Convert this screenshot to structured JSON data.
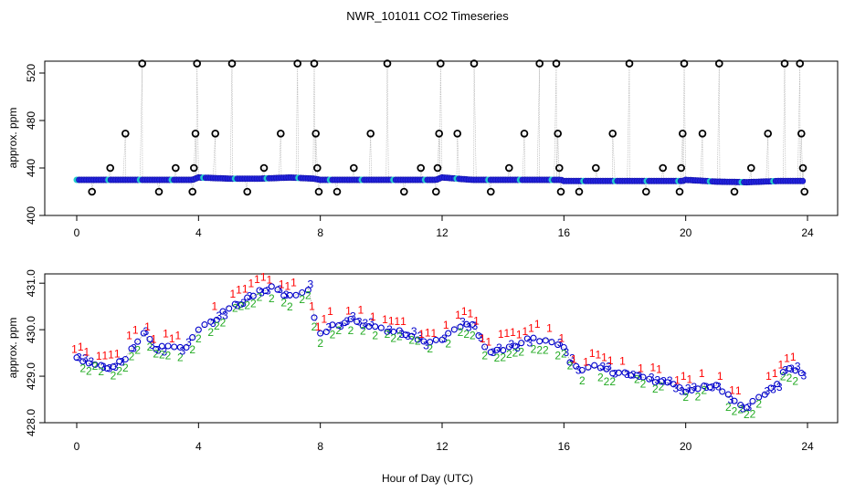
{
  "title": "NWR_101011  CO2 Timeseries",
  "xlabel": "Hour of Day (UTC)",
  "chart_data": [
    {
      "type": "scatter",
      "panel": "top",
      "ylabel": "approx. ppm",
      "xlim": [
        0,
        24
      ],
      "ylim": [
        400,
        530
      ],
      "xticks": [
        0,
        4,
        8,
        12,
        16,
        20,
        24
      ],
      "yticks": [
        400,
        440,
        480,
        520
      ],
      "baseline": [
        [
          0,
          430
        ],
        [
          1,
          430
        ],
        [
          2,
          430
        ],
        [
          3,
          430
        ],
        [
          3.8,
          430
        ],
        [
          4,
          432
        ],
        [
          5,
          431
        ],
        [
          6,
          431
        ],
        [
          7,
          432
        ],
        [
          7.8,
          431
        ],
        [
          8,
          430
        ],
        [
          10,
          430
        ],
        [
          11.8,
          430
        ],
        [
          12,
          432
        ],
        [
          13,
          430
        ],
        [
          15,
          430
        ],
        [
          15.9,
          430
        ],
        [
          16,
          429
        ],
        [
          18,
          429
        ],
        [
          19.9,
          429
        ],
        [
          20,
          430
        ],
        [
          21,
          428.5
        ],
        [
          22,
          428
        ],
        [
          23,
          429
        ],
        [
          23.8,
          429
        ]
      ],
      "outliers": [
        {
          "x": 0.5,
          "y": 420
        },
        {
          "x": 1.1,
          "y": 440
        },
        {
          "x": 1.6,
          "y": 469
        },
        {
          "x": 2.15,
          "y": 528
        },
        {
          "x": 2.7,
          "y": 420
        },
        {
          "x": 3.25,
          "y": 440
        },
        {
          "x": 3.8,
          "y": 420
        },
        {
          "x": 3.85,
          "y": 440
        },
        {
          "x": 3.9,
          "y": 469
        },
        {
          "x": 3.95,
          "y": 528
        },
        {
          "x": 4.55,
          "y": 469
        },
        {
          "x": 5.1,
          "y": 528
        },
        {
          "x": 5.6,
          "y": 420
        },
        {
          "x": 6.15,
          "y": 440
        },
        {
          "x": 6.7,
          "y": 469
        },
        {
          "x": 7.25,
          "y": 528
        },
        {
          "x": 7.8,
          "y": 528
        },
        {
          "x": 7.85,
          "y": 469
        },
        {
          "x": 7.9,
          "y": 440
        },
        {
          "x": 7.95,
          "y": 420
        },
        {
          "x": 8.55,
          "y": 420
        },
        {
          "x": 9.1,
          "y": 440
        },
        {
          "x": 9.65,
          "y": 469
        },
        {
          "x": 10.2,
          "y": 528
        },
        {
          "x": 10.75,
          "y": 420
        },
        {
          "x": 11.3,
          "y": 440
        },
        {
          "x": 11.8,
          "y": 420
        },
        {
          "x": 11.85,
          "y": 440
        },
        {
          "x": 11.9,
          "y": 469
        },
        {
          "x": 11.95,
          "y": 528
        },
        {
          "x": 12.5,
          "y": 469
        },
        {
          "x": 13.05,
          "y": 528
        },
        {
          "x": 13.6,
          "y": 420
        },
        {
          "x": 14.2,
          "y": 440
        },
        {
          "x": 14.7,
          "y": 469
        },
        {
          "x": 15.2,
          "y": 528
        },
        {
          "x": 15.75,
          "y": 528
        },
        {
          "x": 15.8,
          "y": 469
        },
        {
          "x": 15.85,
          "y": 440
        },
        {
          "x": 15.9,
          "y": 420
        },
        {
          "x": 16.5,
          "y": 420
        },
        {
          "x": 17.05,
          "y": 440
        },
        {
          "x": 17.6,
          "y": 469
        },
        {
          "x": 18.15,
          "y": 528
        },
        {
          "x": 18.7,
          "y": 420
        },
        {
          "x": 19.25,
          "y": 440
        },
        {
          "x": 19.8,
          "y": 420
        },
        {
          "x": 19.85,
          "y": 440
        },
        {
          "x": 19.9,
          "y": 469
        },
        {
          "x": 19.95,
          "y": 528
        },
        {
          "x": 20.55,
          "y": 469
        },
        {
          "x": 21.1,
          "y": 528
        },
        {
          "x": 21.6,
          "y": 420
        },
        {
          "x": 22.15,
          "y": 440
        },
        {
          "x": 22.7,
          "y": 469
        },
        {
          "x": 23.25,
          "y": 528
        },
        {
          "x": 23.75,
          "y": 528
        },
        {
          "x": 23.8,
          "y": 469
        },
        {
          "x": 23.85,
          "y": 440
        },
        {
          "x": 23.9,
          "y": 420
        }
      ]
    },
    {
      "type": "line",
      "panel": "bottom",
      "ylabel": "approx. ppm",
      "xlim": [
        0,
        24
      ],
      "ylim": [
        428,
        431.2
      ],
      "xticks": [
        0,
        4,
        8,
        12,
        16,
        20,
        24
      ],
      "yticks": [
        428.0,
        429.0,
        430.0,
        431.0
      ],
      "ytick_labels": [
        "428.0",
        "429.0",
        "430.0",
        "431.0"
      ],
      "series": [
        {
          "name": "1",
          "color": "#ff0000",
          "offset": 0.25
        },
        {
          "name": "2",
          "color": "#22aa22",
          "offset": -0.15
        },
        {
          "name": "3",
          "color": "#0000cc",
          "offset": 0.0
        }
      ],
      "anchors": [
        [
          0,
          429.4
        ],
        [
          0.5,
          429.3
        ],
        [
          1.0,
          429.2
        ],
        [
          1.5,
          429.3
        ],
        [
          1.8,
          429.6
        ],
        [
          2.2,
          429.9
        ],
        [
          2.6,
          429.6
        ],
        [
          3.0,
          429.6
        ],
        [
          3.5,
          429.6
        ],
        [
          3.8,
          429.8
        ],
        [
          4.0,
          430.0
        ],
        [
          4.5,
          430.2
        ],
        [
          5.0,
          430.5
        ],
        [
          5.5,
          430.6
        ],
        [
          6.0,
          430.8
        ],
        [
          6.5,
          430.9
        ],
        [
          7.0,
          430.7
        ],
        [
          7.4,
          430.8
        ],
        [
          7.6,
          430.9
        ],
        [
          7.8,
          430.3
        ],
        [
          8.0,
          429.9
        ],
        [
          8.5,
          430.1
        ],
        [
          9.0,
          430.2
        ],
        [
          9.5,
          430.1
        ],
        [
          10.0,
          430.0
        ],
        [
          10.5,
          430.0
        ],
        [
          11.0,
          429.9
        ],
        [
          11.5,
          429.7
        ],
        [
          12.0,
          429.8
        ],
        [
          12.5,
          430.1
        ],
        [
          13.0,
          430.1
        ],
        [
          13.2,
          429.9
        ],
        [
          13.5,
          429.5
        ],
        [
          14.0,
          429.6
        ],
        [
          14.5,
          429.7
        ],
        [
          15.0,
          429.8
        ],
        [
          15.5,
          429.8
        ],
        [
          16.0,
          429.6
        ],
        [
          16.3,
          429.2
        ],
        [
          16.6,
          429.1
        ],
        [
          17.0,
          429.2
        ],
        [
          17.5,
          429.1
        ],
        [
          18.0,
          429.1
        ],
        [
          18.5,
          429.0
        ],
        [
          19.0,
          428.9
        ],
        [
          19.5,
          428.8
        ],
        [
          20.0,
          428.7
        ],
        [
          20.5,
          428.8
        ],
        [
          21.0,
          428.8
        ],
        [
          21.5,
          428.5
        ],
        [
          22.0,
          428.3
        ],
        [
          22.5,
          428.6
        ],
        [
          23.0,
          428.8
        ],
        [
          23.3,
          429.2
        ],
        [
          23.7,
          429.1
        ]
      ]
    }
  ]
}
